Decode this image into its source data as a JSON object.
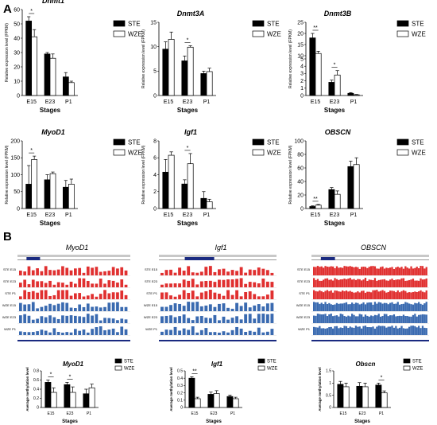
{
  "panel_labels": [
    "A",
    "B"
  ],
  "series_names": [
    "STE",
    "WZE"
  ],
  "series_colors": [
    "#000000",
    "#ffffff"
  ],
  "stages_label": "Stages",
  "expr_ylabel": "Relative expression level (FPKM)",
  "meth_ylabel": "Average methylation level",
  "chart_data": [
    {
      "type": "bar",
      "title": "Dnmt1",
      "categories": [
        "E15",
        "E23",
        "P1"
      ],
      "xlabel": "Stages",
      "ylabel": "Relative expression level (FPKM)",
      "ylim": [
        0,
        60
      ],
      "yticks": [
        0,
        10,
        20,
        30,
        40,
        50,
        60
      ],
      "series": [
        {
          "name": "STE",
          "values": [
            52,
            29,
            13
          ],
          "errors": [
            3,
            1,
            3
          ]
        },
        {
          "name": "WZE",
          "values": [
            41,
            26,
            9
          ],
          "errors": [
            5,
            3,
            1
          ]
        }
      ],
      "annotations": [
        {
          "category": "E15",
          "text": "*"
        }
      ]
    },
    {
      "type": "bar",
      "title": "Dnmt3A",
      "categories": [
        "E15",
        "E23",
        "P1"
      ],
      "xlabel": "Stages",
      "ylabel": "Relative expression level (FPKM)",
      "ylim": [
        0,
        15
      ],
      "yticks": [
        0,
        5,
        10,
        15
      ],
      "series": [
        {
          "name": "STE",
          "values": [
            9.5,
            7.1,
            4.5
          ],
          "errors": [
            1.5,
            1.0,
            0.5
          ]
        },
        {
          "name": "WZE",
          "values": [
            11.5,
            9.9,
            4.9
          ],
          "errors": [
            1.5,
            0.3,
            0.7
          ]
        }
      ],
      "annotations": [
        {
          "category": "E23",
          "text": "*"
        }
      ]
    },
    {
      "type": "bar",
      "title": "Dnmt3B",
      "categories": [
        "E15",
        "E23",
        "P1"
      ],
      "xlabel": "Stages",
      "ylabel": "Relative expression level (FPKM)",
      "ylim": [
        0,
        25
      ],
      "yticks": [
        0,
        1,
        2,
        3,
        4,
        5,
        10,
        15,
        20,
        25
      ],
      "axis_break": [
        5,
        10
      ],
      "series": [
        {
          "name": "STE",
          "values": [
            18,
            1.8,
            0.3
          ],
          "errors": [
            2,
            0.3,
            0.1
          ]
        },
        {
          "name": "WZE",
          "values": [
            11,
            2.8,
            0.1
          ],
          "errors": [
            1,
            0.6,
            0.05
          ]
        }
      ],
      "annotations": [
        {
          "category": "E15",
          "text": "**"
        },
        {
          "category": "E23",
          "text": "*"
        }
      ]
    },
    {
      "type": "bar",
      "title": "MyoD1",
      "categories": [
        "E15",
        "E23",
        "P1"
      ],
      "xlabel": "Stages",
      "ylabel": "Relative expression level (FPKM)",
      "ylim": [
        0,
        200
      ],
      "yticks": [
        0,
        50,
        100,
        150,
        200
      ],
      "series": [
        {
          "name": "STE",
          "values": [
            72,
            85,
            63
          ],
          "errors": [
            55,
            15,
            20
          ]
        },
        {
          "name": "WZE",
          "values": [
            145,
            103,
            72
          ],
          "errors": [
            10,
            5,
            15
          ]
        }
      ],
      "annotations": [
        {
          "category": "E15",
          "text": "*"
        }
      ]
    },
    {
      "type": "bar",
      "title": "Igf1",
      "categories": [
        "E15",
        "E23",
        "P1"
      ],
      "xlabel": "Stages",
      "ylabel": "Relative expression level (FPKM)",
      "ylim": [
        0,
        8
      ],
      "yticks": [
        0,
        2,
        4,
        6,
        8
      ],
      "series": [
        {
          "name": "STE",
          "values": [
            4.3,
            2.9,
            1.2
          ],
          "errors": [
            1.5,
            0.5,
            0.8
          ]
        },
        {
          "name": "WZE",
          "values": [
            6.3,
            5.3,
            0.8
          ],
          "errors": [
            0.4,
            1.2,
            0.3
          ]
        }
      ],
      "annotations": [
        {
          "category": "E23",
          "text": "*"
        }
      ]
    },
    {
      "type": "bar",
      "title": "OBSCN",
      "categories": [
        "E15",
        "E23",
        "P1"
      ],
      "xlabel": "Stages",
      "ylabel": "Relative expression level (FPKM)",
      "ylim": [
        0,
        100
      ],
      "yticks": [
        0,
        20,
        40,
        60,
        80,
        100
      ],
      "series": [
        {
          "name": "STE",
          "values": [
            3,
            28,
            62
          ],
          "errors": [
            1,
            3,
            8
          ]
        },
        {
          "name": "WZE",
          "values": [
            5,
            21,
            65
          ],
          "errors": [
            1,
            5,
            10
          ]
        }
      ],
      "annotations": [
        {
          "category": "E15",
          "text": "**"
        }
      ]
    },
    {
      "type": "bar",
      "title": "MyoD1",
      "categories": [
        "E15",
        "E23",
        "P1"
      ],
      "xlabel": "Stages",
      "ylabel": "Average methylation level",
      "ylim": [
        0,
        0.8
      ],
      "yticks": [
        0.0,
        0.2,
        0.4,
        0.6,
        0.8
      ],
      "series": [
        {
          "name": "STE",
          "values": [
            0.55,
            0.5,
            0.3
          ],
          "errors": [
            0.05,
            0.05,
            0.1
          ]
        },
        {
          "name": "WZE",
          "values": [
            0.33,
            0.33,
            0.43
          ],
          "errors": [
            0.1,
            0.12,
            0.08
          ]
        }
      ],
      "annotations": [
        {
          "category": "E15",
          "text": "*"
        },
        {
          "category": "E23",
          "text": "*"
        }
      ]
    },
    {
      "type": "bar",
      "title": "Igf1",
      "categories": [
        "E15",
        "E23",
        "P1"
      ],
      "xlabel": "Stages",
      "ylabel": "Average methylation level",
      "ylim": [
        0,
        0.5
      ],
      "yticks": [
        0.0,
        0.1,
        0.2,
        0.3,
        0.4,
        0.5
      ],
      "series": [
        {
          "name": "STE",
          "values": [
            0.4,
            0.18,
            0.15
          ],
          "errors": [
            0.02,
            0.03,
            0.02
          ]
        },
        {
          "name": "WZE",
          "values": [
            0.12,
            0.19,
            0.12
          ],
          "errors": [
            0.02,
            0.04,
            0.02
          ]
        }
      ],
      "annotations": [
        {
          "category": "E15",
          "text": "**"
        }
      ]
    },
    {
      "type": "bar",
      "title": "Obscn",
      "categories": [
        "E15",
        "E23",
        "P1"
      ],
      "xlabel": "Stages",
      "ylabel": "Average methylation level",
      "ylim": [
        0,
        1.5
      ],
      "yticks": [
        0.0,
        0.5,
        1.0,
        1.5
      ],
      "series": [
        {
          "name": "STE",
          "values": [
            0.95,
            0.87,
            0.92
          ],
          "errors": [
            0.12,
            0.15,
            0.08
          ]
        },
        {
          "name": "WZE",
          "values": [
            0.85,
            0.85,
            0.6
          ],
          "errors": [
            0.15,
            0.15,
            0.08
          ]
        }
      ],
      "annotations": [
        {
          "category": "P1",
          "text": "*"
        }
      ]
    }
  ],
  "tracks": [
    {
      "title": "MyoD1",
      "color": "#e03030",
      "rows": [
        "STE E15",
        "STE E23",
        "STE P1",
        "WZE E15",
        "WZE E23",
        "WZE P1"
      ]
    },
    {
      "title": "Igf1",
      "color": "#e03030",
      "rows": [
        "STE E15",
        "STE E23",
        "STE P1",
        "WZE E15",
        "WZE E23",
        "WZE P1"
      ]
    },
    {
      "title": "OBSCN",
      "color": "#e03030",
      "rows": [
        "STE E15",
        "STE E23",
        "STE P1",
        "WZE E15",
        "WZE E23",
        "WZE P1"
      ]
    }
  ]
}
